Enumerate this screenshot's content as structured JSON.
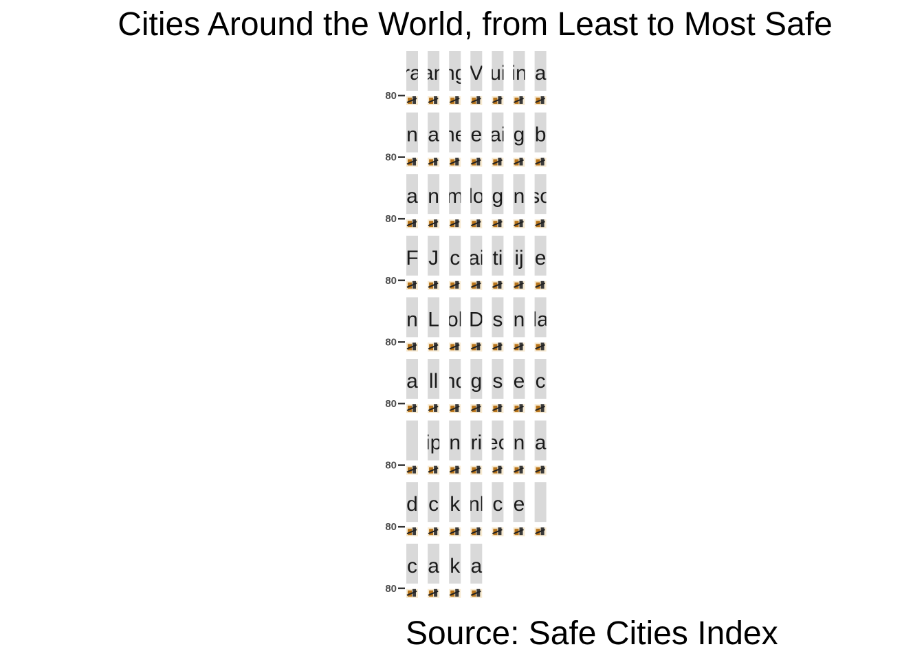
{
  "chart_data": {
    "type": "bar",
    "title": "Cities Around the World, from Least to Most Safe",
    "caption": "Source: Safe Cities Index",
    "layout": "facet-wrap",
    "facet_columns": 7,
    "facet_strips": [
      "ra",
      "an",
      "ng",
      "V",
      "ui",
      "in",
      "a",
      "n",
      "a",
      "ne",
      "e",
      "ai",
      "g",
      "b",
      "a",
      "n",
      "m",
      "lo",
      "g",
      "n",
      "so",
      "F",
      "J",
      "c",
      "ai",
      "ti",
      "ij",
      "e",
      "n",
      "L",
      "ol",
      "D",
      "s",
      "n",
      "la",
      "a",
      "ll",
      "hc",
      "g",
      "s",
      "e",
      "c",
      "",
      "ip",
      "n",
      "ri",
      "ec",
      "n",
      "a",
      "d",
      "c",
      "k",
      "nl",
      "c",
      "e",
      "",
      "c",
      "a",
      "k",
      "a"
    ],
    "y_tick_label": "80",
    "value_scale": "safety score"
  }
}
